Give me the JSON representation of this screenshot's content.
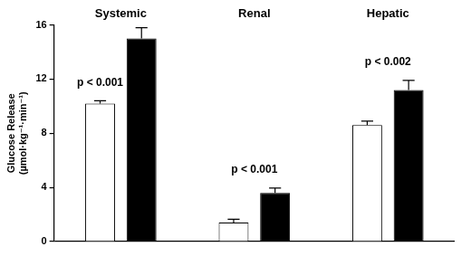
{
  "chart_data": {
    "type": "bar",
    "categories": [
      "Systemic",
      "Renal",
      "Hepatic"
    ],
    "series": [
      {
        "color": "#ffffff",
        "values": [
          10.2,
          1.4,
          8.6
        ],
        "errors": [
          0.2,
          0.25,
          0.3
        ]
      },
      {
        "color": "#000000",
        "values": [
          15.0,
          3.6,
          11.2
        ],
        "errors": [
          0.8,
          0.35,
          0.7
        ]
      }
    ],
    "y_label": [
      "Glucose Release",
      "(µmol·kg⁻¹·min⁻¹)"
    ],
    "ylim": [
      0,
      16
    ],
    "yticks": [
      0,
      4,
      8,
      12,
      16
    ],
    "grid": false,
    "data_labels": false,
    "annotations": [
      {
        "category": "Systemic",
        "text": "p < 0.001"
      },
      {
        "category": "Renal",
        "text": "p < 0.001"
      },
      {
        "category": "Hepatic",
        "text": "p < 0.002"
      }
    ]
  }
}
